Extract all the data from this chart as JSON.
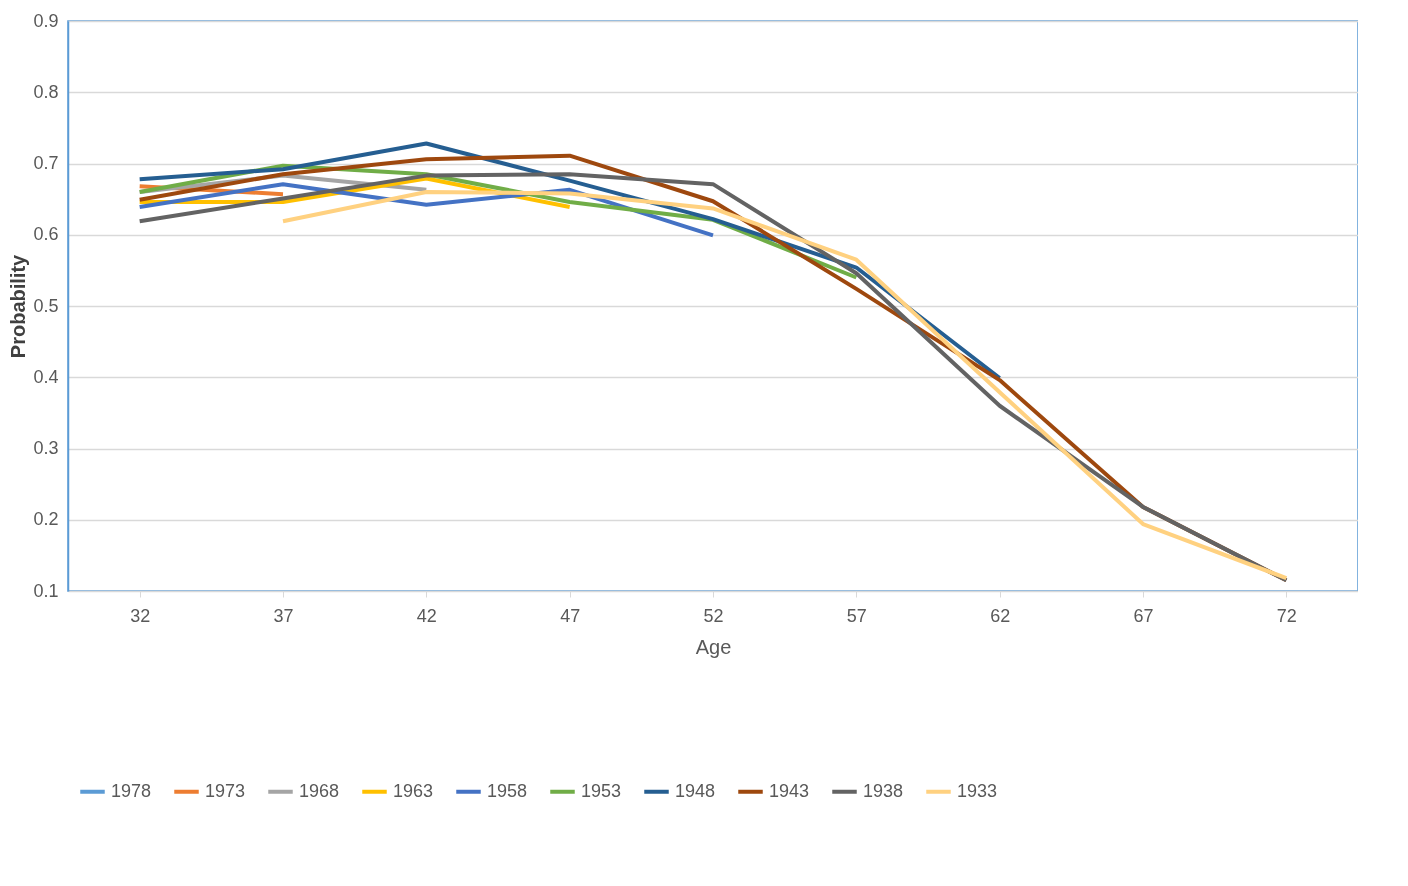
{
  "chart_data": {
    "type": "line",
    "xlabel": "Age",
    "ylabel": "Probability",
    "categories": [
      "32",
      "37",
      "42",
      "47",
      "52",
      "57",
      "62",
      "67",
      "72"
    ],
    "ylim": [
      0.1,
      0.9
    ],
    "yticks": [
      0.1,
      0.2,
      0.3,
      0.4,
      0.5,
      0.6,
      0.7,
      0.8,
      0.9
    ],
    "grid": "y",
    "legend": "bottom",
    "line_style": "solid",
    "marker": "none",
    "series": [
      {
        "name": "1978",
        "color": "#5b9bd5",
        "values": [
          null,
          null,
          null,
          null,
          null,
          null,
          null,
          null,
          null
        ]
      },
      {
        "name": "1973",
        "color": "#ed7d31",
        "values": [
          0.668,
          0.657,
          null,
          null,
          null,
          null,
          null,
          null,
          null
        ]
      },
      {
        "name": "1968",
        "color": "#a5a5a5",
        "values": [
          0.66,
          0.683,
          0.663,
          null,
          null,
          null,
          null,
          null,
          null
        ]
      },
      {
        "name": "1963",
        "color": "#ffc000",
        "values": [
          0.646,
          0.646,
          0.679,
          0.639,
          null,
          null,
          null,
          null,
          null
        ]
      },
      {
        "name": "1958",
        "color": "#4472c4",
        "values": [
          0.639,
          0.671,
          0.642,
          0.663,
          0.599,
          null,
          null,
          null,
          null
        ]
      },
      {
        "name": "1953",
        "color": "#70ad47",
        "values": [
          0.66,
          0.697,
          0.685,
          0.646,
          0.621,
          0.54,
          null,
          null,
          null
        ]
      },
      {
        "name": "1948",
        "color": "#255e91",
        "values": [
          0.678,
          0.692,
          0.728,
          0.676,
          0.622,
          0.554,
          0.399,
          null,
          null
        ]
      },
      {
        "name": "1943",
        "color": "#9e480e",
        "values": [
          0.649,
          0.685,
          0.706,
          0.711,
          0.647,
          0.524,
          0.396,
          0.218,
          0.115
        ]
      },
      {
        "name": "1938",
        "color": "#636363",
        "values": [
          0.619,
          0.651,
          0.683,
          0.685,
          0.671,
          0.546,
          0.36,
          0.218,
          0.115
        ]
      },
      {
        "name": "1933",
        "color": "#ffd180",
        "values": [
          null,
          0.619,
          0.66,
          0.658,
          0.637,
          0.565,
          0.379,
          0.194,
          0.118
        ]
      }
    ]
  }
}
